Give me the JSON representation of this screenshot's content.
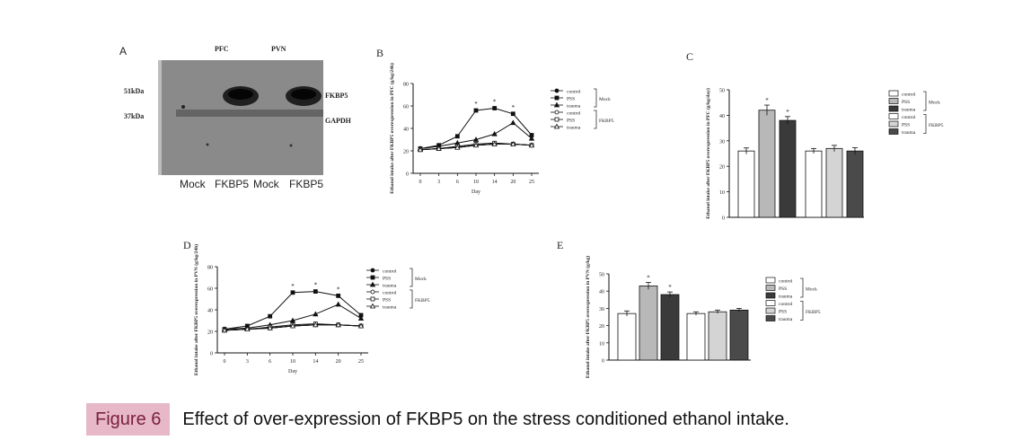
{
  "figure": {
    "badge": "Figure 6",
    "caption": "Effect of over-expression of FKBP5 on the stress conditioned ethanol intake."
  },
  "panel_a": {
    "letter": "A",
    "columns": [
      "PFC",
      "PVN"
    ],
    "markers": [
      "51kDa",
      "37kDa"
    ],
    "bands": [
      "FKBP5",
      "GAPDH"
    ],
    "lanes": [
      "Mock",
      "FKBP5",
      "Mock",
      "FKBP5"
    ]
  },
  "chart_data": [
    {
      "panel": "B",
      "type": "line",
      "ylabel": "Ethanol intake after FKBP5 overexpression in PFC (g/kg/24h)",
      "xlabel": "Day",
      "x": [
        0,
        3,
        6,
        10,
        14,
        20,
        25
      ],
      "ylim": [
        0,
        80
      ],
      "yticks": [
        0,
        20,
        40,
        60,
        80
      ],
      "series": [
        {
          "name": "control",
          "group": "Mock",
          "values": [
            21,
            22,
            23,
            25,
            26,
            26,
            25
          ]
        },
        {
          "name": "PSS",
          "group": "Mock",
          "values": [
            22,
            25,
            33,
            56,
            58,
            53,
            34
          ]
        },
        {
          "name": "trauma",
          "group": "Mock",
          "values": [
            22,
            24,
            27,
            30,
            35,
            45,
            31
          ]
        },
        {
          "name": "control",
          "group": "FKBP5",
          "values": [
            21,
            22,
            23,
            25,
            26,
            26,
            25
          ]
        },
        {
          "name": "PSS",
          "group": "FKBP5",
          "values": [
            21,
            22,
            24,
            26,
            27,
            26,
            25
          ]
        },
        {
          "name": "trauma",
          "group": "FKBP5",
          "values": [
            21,
            22,
            23,
            25,
            26,
            26,
            25
          ]
        }
      ],
      "legend_groups": [
        "Mock",
        "FKBP5"
      ],
      "annotations": [
        "*",
        "*",
        "*"
      ]
    },
    {
      "panel": "C",
      "type": "bar",
      "ylabel": "Ethanol intake after FKBP5 overexpression in PFC (g/kg/day)",
      "ylim": [
        0,
        50
      ],
      "yticks": [
        0,
        10,
        20,
        30,
        40,
        50
      ],
      "series": [
        {
          "name": "control",
          "group": "Mock",
          "value": 26,
          "error": 1.2
        },
        {
          "name": "PSS",
          "group": "Mock",
          "value": 42,
          "error": 2
        },
        {
          "name": "trauma",
          "group": "Mock",
          "value": 38,
          "error": 1.5
        },
        {
          "name": "control",
          "group": "FKBP5",
          "value": 26,
          "error": 1
        },
        {
          "name": "PSS",
          "group": "FKBP5",
          "value": 27,
          "error": 1.2
        },
        {
          "name": "trauma",
          "group": "FKBP5",
          "value": 26,
          "error": 1.3
        }
      ],
      "legend_groups": [
        "Mock",
        "FKBP5"
      ],
      "annotations": [
        "*",
        "*"
      ]
    },
    {
      "panel": "D",
      "type": "line",
      "ylabel": "Ethanol intake after FKBP5 overexpression in PVN (g/kg/24h)",
      "xlabel": "Day",
      "x": [
        0,
        3,
        6,
        10,
        14,
        20,
        25
      ],
      "ylim": [
        0,
        80
      ],
      "yticks": [
        0,
        20,
        40,
        60,
        80
      ],
      "series": [
        {
          "name": "control",
          "group": "Mock",
          "values": [
            21,
            22,
            23,
            25,
            26,
            26,
            25
          ]
        },
        {
          "name": "PSS",
          "group": "Mock",
          "values": [
            22,
            25,
            34,
            56,
            57,
            53,
            35
          ]
        },
        {
          "name": "trauma",
          "group": "Mock",
          "values": [
            22,
            23,
            26,
            30,
            36,
            45,
            32
          ]
        },
        {
          "name": "control",
          "group": "FKBP5",
          "values": [
            21,
            22,
            23,
            25,
            26,
            26,
            25
          ]
        },
        {
          "name": "PSS",
          "group": "FKBP5",
          "values": [
            21,
            22,
            24,
            26,
            27,
            26,
            25
          ]
        },
        {
          "name": "trauma",
          "group": "FKBP5",
          "values": [
            21,
            22,
            23,
            25,
            26,
            26,
            25
          ]
        }
      ],
      "legend_groups": [
        "Mock",
        "FKBP5"
      ],
      "annotations": [
        "*",
        "*",
        "*"
      ]
    },
    {
      "panel": "E",
      "type": "bar",
      "ylabel": "Ethanol intake after FKBP5 overexpression in PVN (g/kg)",
      "ylim": [
        0,
        50
      ],
      "yticks": [
        0,
        10,
        20,
        30,
        40,
        50
      ],
      "series": [
        {
          "name": "control",
          "group": "Mock",
          "value": 27,
          "error": 1.5
        },
        {
          "name": "PSS",
          "group": "Mock",
          "value": 43,
          "error": 2
        },
        {
          "name": "trauma",
          "group": "Mock",
          "value": 38,
          "error": 1.5
        },
        {
          "name": "control",
          "group": "FKBP5",
          "value": 27,
          "error": 1
        },
        {
          "name": "PSS",
          "group": "FKBP5",
          "value": 28,
          "error": 1
        },
        {
          "name": "trauma",
          "group": "FKBP5",
          "value": 29,
          "error": 1
        }
      ],
      "legend_groups": [
        "Mock",
        "FKBP5"
      ],
      "annotations": [
        "*",
        "*"
      ]
    }
  ]
}
